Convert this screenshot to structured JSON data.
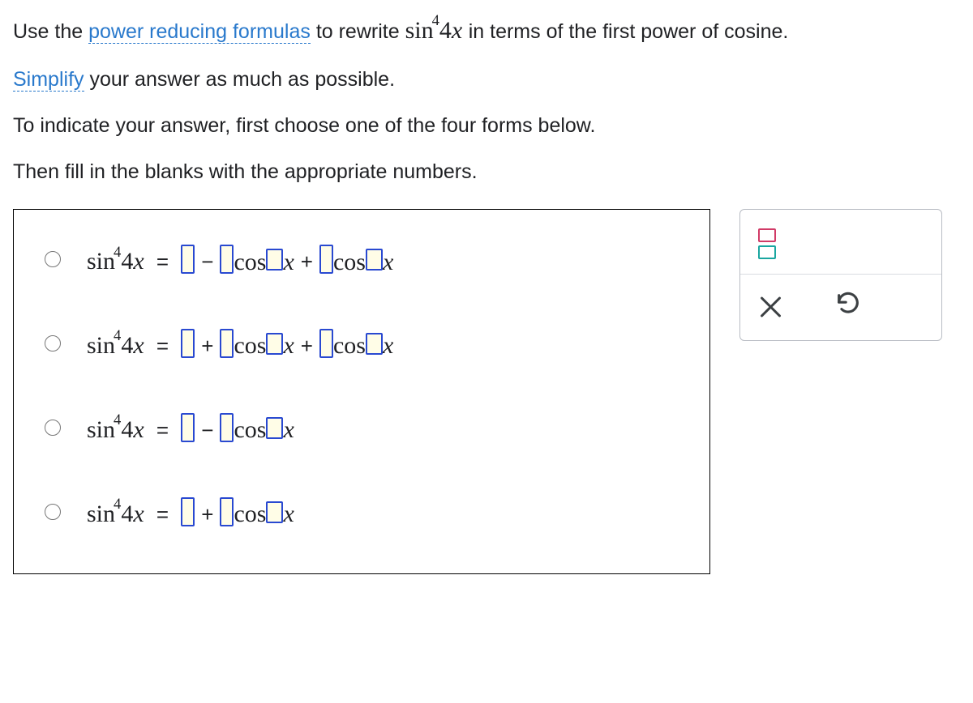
{
  "instructions": {
    "line1_a": "Use the ",
    "link1": "power reducing formulas",
    "line1_b": " to rewrite ",
    "expr_sin4x_html": "sin",
    "expr_arg": "4",
    "expr_var": "x",
    "line1_c": " in terms of the first power of cosine.",
    "link2": "Simplify",
    "line2_b": " your answer as much as possible.",
    "line3": "To indicate your answer, first choose one of the four forms below.",
    "line4": "Then fill in the blanks with the appropriate numbers."
  },
  "options": [
    {
      "lhs": "sin⁴4x",
      "pattern": [
        "blank",
        "minus",
        "blank",
        "cos",
        "sblank",
        "x",
        "plus",
        "blank",
        "cos",
        "sblank",
        "x"
      ]
    },
    {
      "lhs": "sin⁴4x",
      "pattern": [
        "blank",
        "plus",
        "blank",
        "cos",
        "sblank",
        "x",
        "plus",
        "blank",
        "cos",
        "sblank",
        "x"
      ]
    },
    {
      "lhs": "sin⁴4x",
      "pattern": [
        "blank",
        "minus",
        "blank",
        "cos",
        "sblank",
        "x"
      ]
    },
    {
      "lhs": "sin⁴4x",
      "pattern": [
        "blank",
        "plus",
        "blank",
        "cos",
        "sblank",
        "x"
      ]
    }
  ],
  "symbols": {
    "equals": "=",
    "plus": "+",
    "minus": "−",
    "cos": "cos",
    "x": "x",
    "lhs_prefix": "sin",
    "lhs_exp": "4",
    "lhs_arg": "4",
    "lhs_var": "x"
  },
  "tools": {
    "fraction_name": "fraction-tool",
    "clear_name": "clear",
    "undo_name": "undo"
  },
  "style": {
    "blank_bg": "#fffde7",
    "blank_border": "#2949d1",
    "link_color": "#2979cc",
    "frac_top_color": "#d13b67",
    "frac_bot_color": "#1aa6a0"
  }
}
